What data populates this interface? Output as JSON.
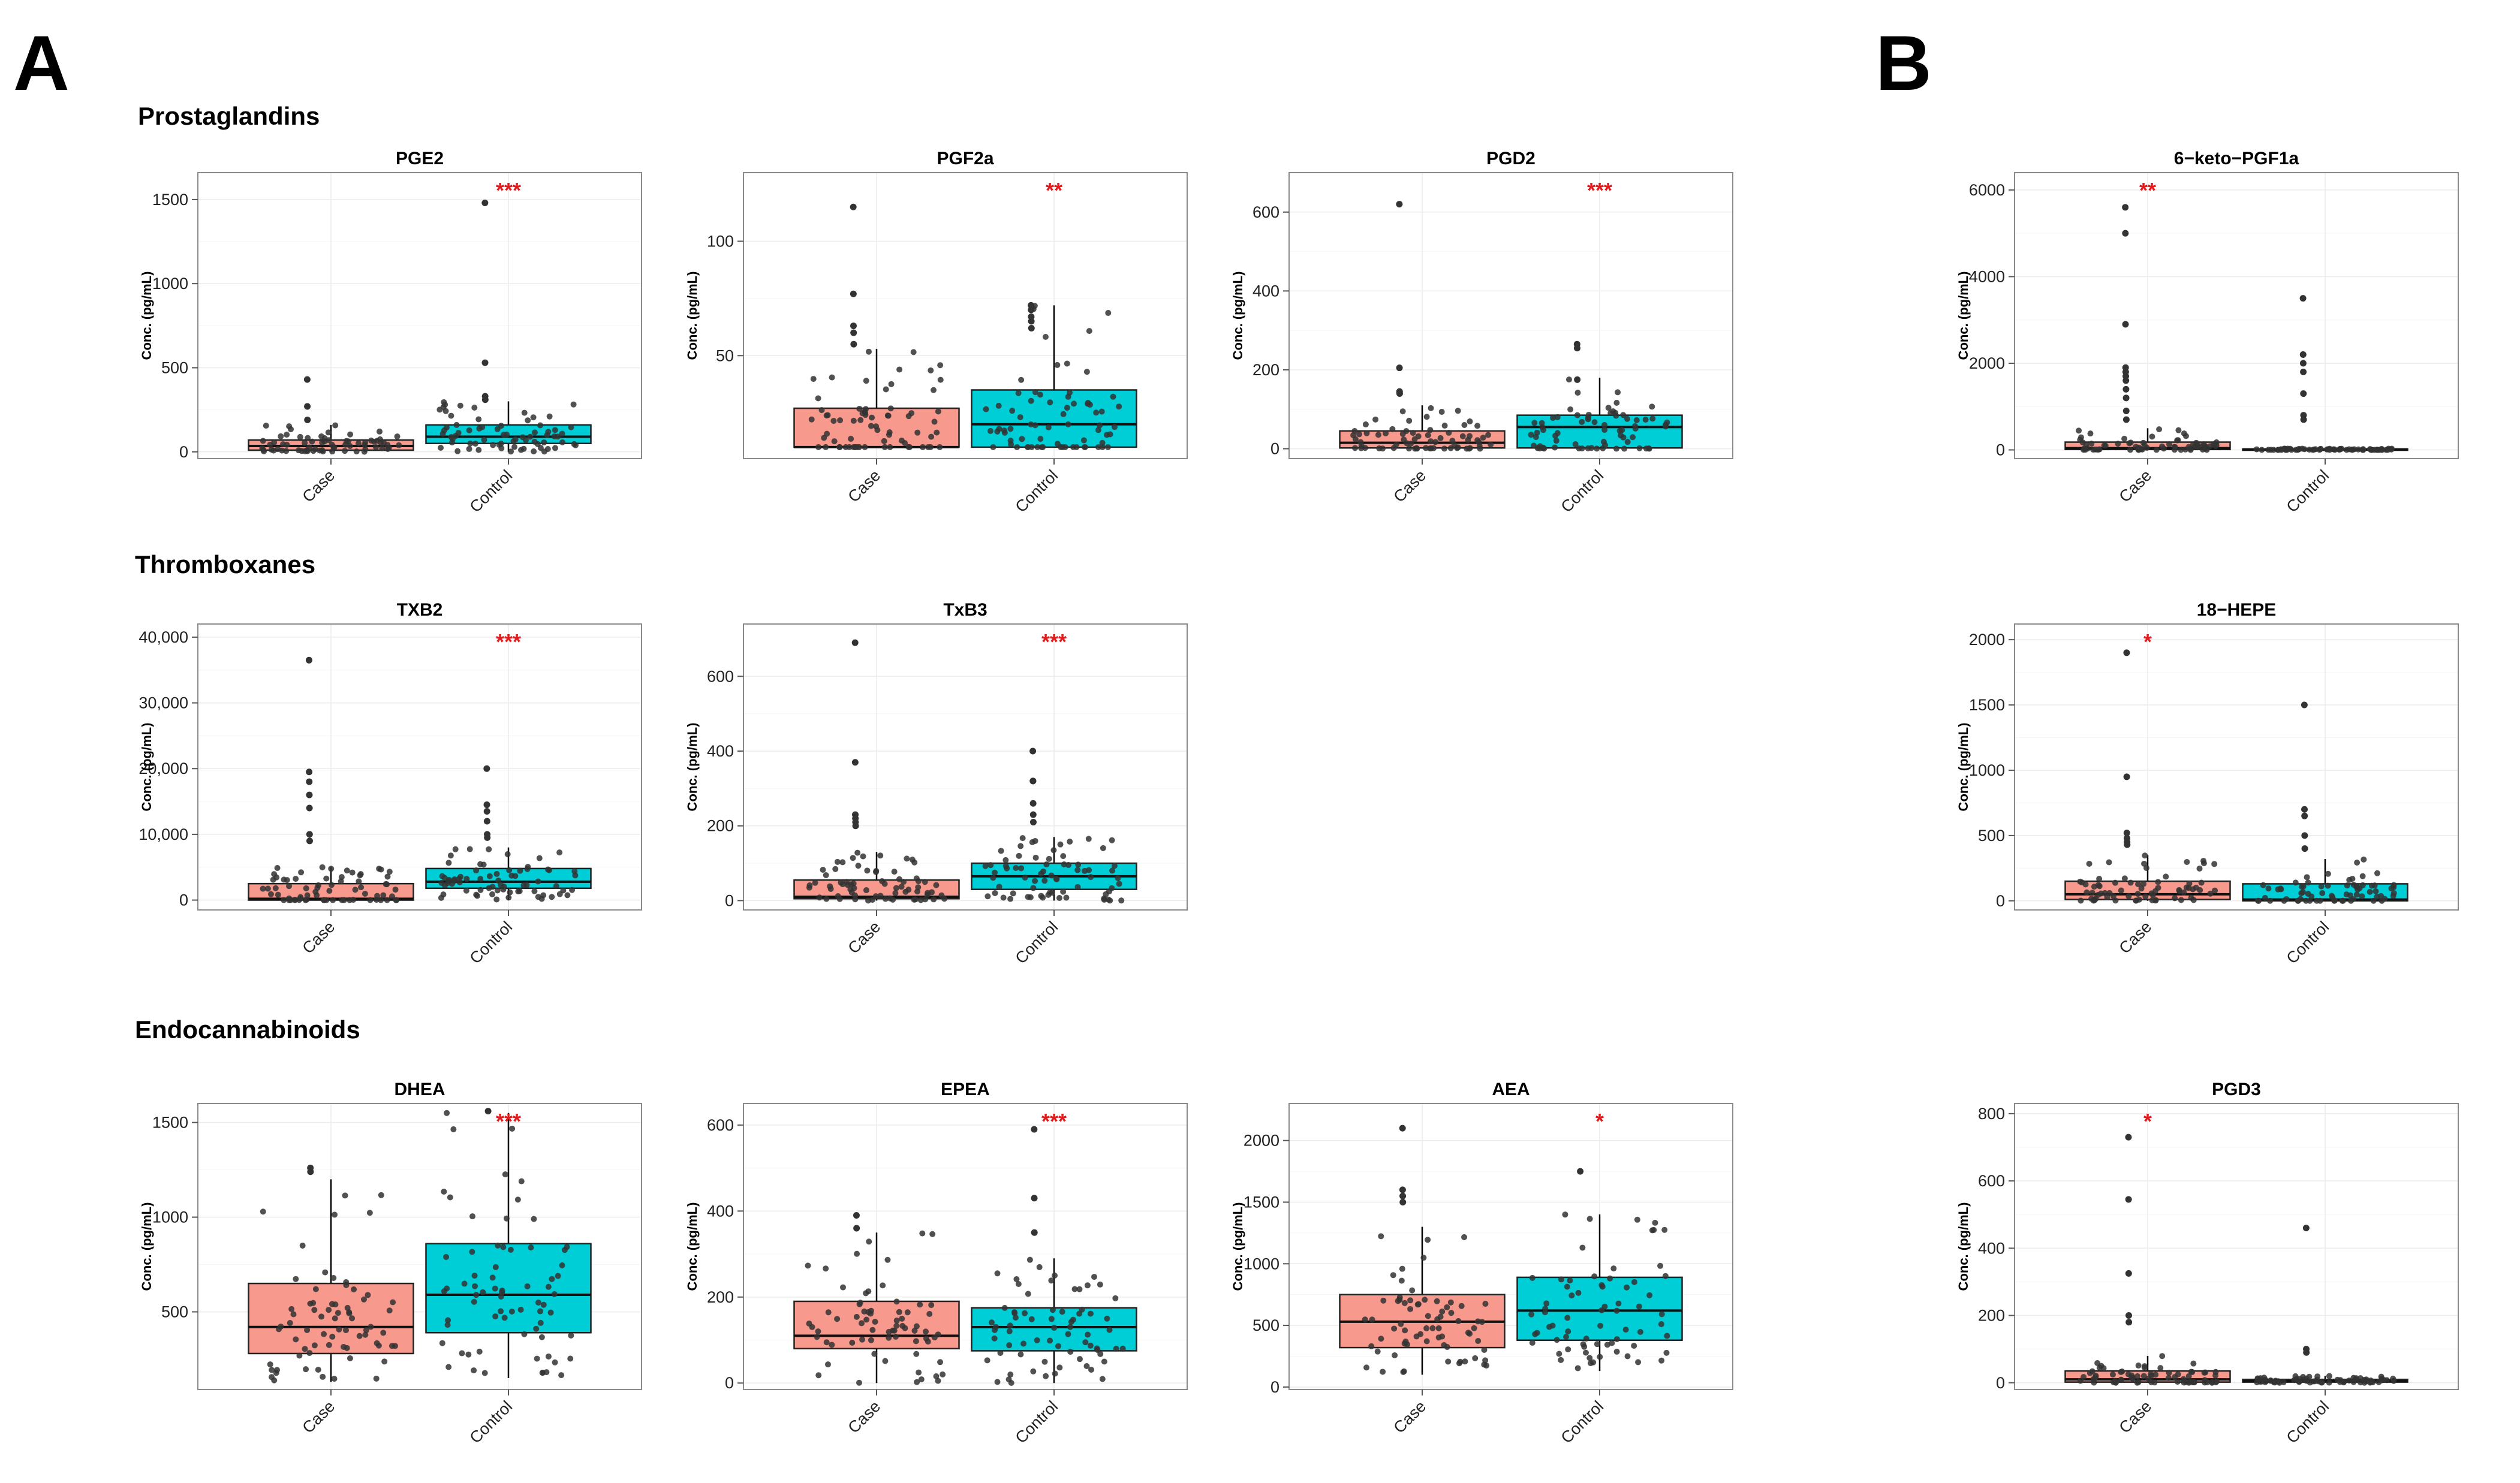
{
  "panels": {
    "a": "A",
    "b": "B"
  },
  "sections": {
    "prostaglandins": "Prostaglandins",
    "thromboxanes": "Thromboxanes",
    "endocannabinoids": "Endocannabinoids"
  },
  "colors": {
    "case": "#F8998E",
    "control": "#00CED6",
    "signif": "#E41A1C",
    "point": "#333333"
  },
  "chart_data": [
    {
      "id": "pge2",
      "type": "box",
      "title": "PGE2",
      "ylabel": "Conc. (pg/mL)",
      "categories": [
        "Case",
        "Control"
      ],
      "signif": "***",
      "ylim": [
        -40,
        1660
      ],
      "yticks": [
        {
          "v": 0,
          "t": "0"
        },
        {
          "v": 500,
          "t": "500"
        },
        {
          "v": 1000,
          "t": "1000"
        },
        {
          "v": 1500,
          "t": "1500"
        }
      ],
      "boxes": [
        {
          "q1": 10,
          "median": 35,
          "q3": 70,
          "whislo": 0,
          "whishi": 160
        },
        {
          "q1": 50,
          "median": 90,
          "q3": 160,
          "whislo": 0,
          "whishi": 300
        }
      ],
      "outliers": [
        [
          430,
          270,
          190
        ],
        [
          1480,
          530,
          330,
          310
        ]
      ]
    },
    {
      "id": "pgf2a",
      "type": "box",
      "title": "PGF2a",
      "ylabel": "Conc. (pg/mL)",
      "categories": [
        "Case",
        "Control"
      ],
      "signif": "**",
      "ylim": [
        5,
        130
      ],
      "yticks": [
        {
          "v": 50,
          "t": "50"
        },
        {
          "v": 100,
          "t": "100"
        }
      ],
      "boxes": [
        {
          "q1": 10,
          "median": 10,
          "q3": 27,
          "whislo": 10,
          "whishi": 53
        },
        {
          "q1": 10,
          "median": 20,
          "q3": 35,
          "whislo": 10,
          "whishi": 72
        }
      ],
      "outliers": [
        [
          115,
          77,
          63,
          60,
          55
        ],
        [
          72,
          70,
          67,
          65,
          62
        ]
      ]
    },
    {
      "id": "pgd2",
      "type": "box",
      "title": "PGD2",
      "ylabel": "Conc. (pg/mL)",
      "categories": [
        "Case",
        "Control"
      ],
      "signif": "***",
      "ylim": [
        -25,
        700
      ],
      "yticks": [
        {
          "v": 0,
          "t": "0"
        },
        {
          "v": 200,
          "t": "200"
        },
        {
          "v": 400,
          "t": "400"
        },
        {
          "v": 600,
          "t": "600"
        }
      ],
      "boxes": [
        {
          "q1": 2,
          "median": 15,
          "q3": 45,
          "whislo": 0,
          "whishi": 110
        },
        {
          "q1": 2,
          "median": 55,
          "q3": 85,
          "whislo": 0,
          "whishi": 180
        }
      ],
      "outliers": [
        [
          620,
          205,
          145,
          140
        ],
        [
          265,
          255,
          175
        ]
      ]
    },
    {
      "id": "ketopgf1a",
      "type": "box",
      "title": "6−keto−PGF1a",
      "ylabel": "Conc. (pg/mL)",
      "categories": [
        "Case",
        "Control"
      ],
      "signif": "**",
      "ylim": [
        -200,
        6400
      ],
      "yticks": [
        {
          "v": 0,
          "t": "0"
        },
        {
          "v": 2000,
          "t": "2000"
        },
        {
          "v": 4000,
          "t": "4000"
        },
        {
          "v": 6000,
          "t": "6000"
        }
      ],
      "boxes": [
        {
          "q1": 10,
          "median": 40,
          "q3": 180,
          "whislo": 0,
          "whishi": 500
        },
        {
          "q1": 0,
          "median": 10,
          "q3": 20,
          "whislo": 0,
          "whishi": 30
        }
      ],
      "outliers": [
        [
          5600,
          5000,
          2900,
          1900,
          1800,
          1700,
          1600,
          1400,
          1200,
          900,
          700
        ],
        [
          3500,
          2200,
          2000,
          1800,
          1300,
          800,
          700
        ]
      ]
    },
    {
      "id": "txb2",
      "type": "box",
      "title": "TXB2",
      "ylabel": "Conc. (pg/mL)",
      "categories": [
        "Case",
        "Control"
      ],
      "signif": "***",
      "ylim": [
        -1500,
        42000
      ],
      "yticks": [
        {
          "v": 0,
          "t": "0"
        },
        {
          "v": 10000,
          "t": "10,000"
        },
        {
          "v": 20000,
          "t": "20,000"
        },
        {
          "v": 30000,
          "t": "30,000"
        },
        {
          "v": 40000,
          "t": "40,000"
        }
      ],
      "boxes": [
        {
          "q1": 0,
          "median": 200,
          "q3": 2500,
          "whislo": 0,
          "whishi": 5000
        },
        {
          "q1": 1800,
          "median": 2800,
          "q3": 4800,
          "whislo": 0,
          "whishi": 8000
        }
      ],
      "outliers": [
        [
          36500,
          19500,
          18000,
          16000,
          14000,
          10000,
          9000
        ],
        [
          20000,
          14500,
          13500,
          12000,
          10000,
          9500
        ]
      ]
    },
    {
      "id": "txb3",
      "type": "box",
      "title": "TxB3",
      "ylabel": "Conc. (pg/mL)",
      "categories": [
        "Case",
        "Control"
      ],
      "signif": "***",
      "ylim": [
        -25,
        740
      ],
      "yticks": [
        {
          "v": 0,
          "t": "0"
        },
        {
          "v": 200,
          "t": "200"
        },
        {
          "v": 400,
          "t": "400"
        },
        {
          "v": 600,
          "t": "600"
        }
      ],
      "boxes": [
        {
          "q1": 5,
          "median": 10,
          "q3": 55,
          "whislo": 0,
          "whishi": 130
        },
        {
          "q1": 30,
          "median": 65,
          "q3": 100,
          "whislo": 0,
          "whishi": 170
        }
      ],
      "outliers": [
        [
          690,
          370,
          230,
          220,
          210,
          200
        ],
        [
          400,
          320,
          320,
          260,
          230,
          210
        ]
      ]
    },
    {
      "id": "hepe18",
      "type": "box",
      "title": "18−HEPE",
      "ylabel": "Conc. (pg/mL)",
      "categories": [
        "Case",
        "Control"
      ],
      "signif": "*",
      "ylim": [
        -70,
        2120
      ],
      "yticks": [
        {
          "v": 0,
          "t": "0"
        },
        {
          "v": 500,
          "t": "500"
        },
        {
          "v": 1000,
          "t": "1000"
        },
        {
          "v": 1500,
          "t": "1500"
        },
        {
          "v": 2000,
          "t": "2000"
        }
      ],
      "boxes": [
        {
          "q1": 10,
          "median": 50,
          "q3": 150,
          "whislo": 0,
          "whishi": 350
        },
        {
          "q1": 0,
          "median": 10,
          "q3": 130,
          "whislo": 0,
          "whishi": 320
        }
      ],
      "outliers": [
        [
          1900,
          950,
          520,
          480,
          450,
          430
        ],
        [
          1500,
          700,
          650,
          500,
          400
        ]
      ]
    },
    {
      "id": "dhea",
      "type": "box",
      "title": "DHEA",
      "ylabel": "Conc. (pg/mL)",
      "categories": [
        "Case",
        "Control"
      ],
      "signif": "***",
      "ylim": [
        90,
        1600
      ],
      "yticks": [
        {
          "v": 500,
          "t": "500"
        },
        {
          "v": 1000,
          "t": "1000"
        },
        {
          "v": 1500,
          "t": "1500"
        }
      ],
      "boxes": [
        {
          "q1": 280,
          "median": 420,
          "q3": 650,
          "whislo": 130,
          "whishi": 1200
        },
        {
          "q1": 390,
          "median": 590,
          "q3": 860,
          "whislo": 150,
          "whishi": 1550
        }
      ],
      "outliers": [
        [
          1260,
          1240
        ],
        [
          1560
        ]
      ]
    },
    {
      "id": "epea",
      "type": "box",
      "title": "EPEA",
      "ylabel": "Conc. (pg/mL)",
      "categories": [
        "Case",
        "Control"
      ],
      "signif": "***",
      "ylim": [
        -15,
        650
      ],
      "yticks": [
        {
          "v": 0,
          "t": "0"
        },
        {
          "v": 200,
          "t": "200"
        },
        {
          "v": 400,
          "t": "400"
        },
        {
          "v": 600,
          "t": "600"
        }
      ],
      "boxes": [
        {
          "q1": 80,
          "median": 110,
          "q3": 190,
          "whislo": 0,
          "whishi": 350
        },
        {
          "q1": 75,
          "median": 130,
          "q3": 175,
          "whislo": 0,
          "whishi": 290
        }
      ],
      "outliers": [
        [
          390,
          360
        ],
        [
          590,
          430,
          350
        ]
      ]
    },
    {
      "id": "aea",
      "type": "box",
      "title": "AEA",
      "ylabel": "Conc. (pg/mL)",
      "categories": [
        "Case",
        "Control"
      ],
      "signif": "*",
      "ylim": [
        -20,
        2300
      ],
      "yticks": [
        {
          "v": 0,
          "t": "0"
        },
        {
          "v": 500,
          "t": "500"
        },
        {
          "v": 1000,
          "t": "1000"
        },
        {
          "v": 1500,
          "t": "1500"
        },
        {
          "v": 2000,
          "t": "2000"
        }
      ],
      "boxes": [
        {
          "q1": 320,
          "median": 530,
          "q3": 750,
          "whislo": 100,
          "whishi": 1300
        },
        {
          "q1": 380,
          "median": 620,
          "q3": 890,
          "whislo": 130,
          "whishi": 1400
        }
      ],
      "outliers": [
        [
          2100,
          1600,
          1550,
          1500
        ],
        [
          1750
        ]
      ]
    },
    {
      "id": "pgd3",
      "type": "box",
      "title": "PGD3",
      "ylabel": "Conc. (pg/mL)",
      "categories": [
        "Case",
        "Control"
      ],
      "signif": "*",
      "ylim": [
        -20,
        830
      ],
      "yticks": [
        {
          "v": 0,
          "t": "0"
        },
        {
          "v": 200,
          "t": "200"
        },
        {
          "v": 400,
          "t": "400"
        },
        {
          "v": 600,
          "t": "600"
        },
        {
          "v": 800,
          "t": "800"
        }
      ],
      "boxes": [
        {
          "q1": 2,
          "median": 10,
          "q3": 35,
          "whislo": 0,
          "whishi": 80
        },
        {
          "q1": 2,
          "median": 5,
          "q3": 10,
          "whislo": 0,
          "whishi": 20
        }
      ],
      "outliers": [
        [
          730,
          545,
          325,
          200,
          180
        ],
        [
          460,
          100,
          90
        ]
      ]
    }
  ]
}
